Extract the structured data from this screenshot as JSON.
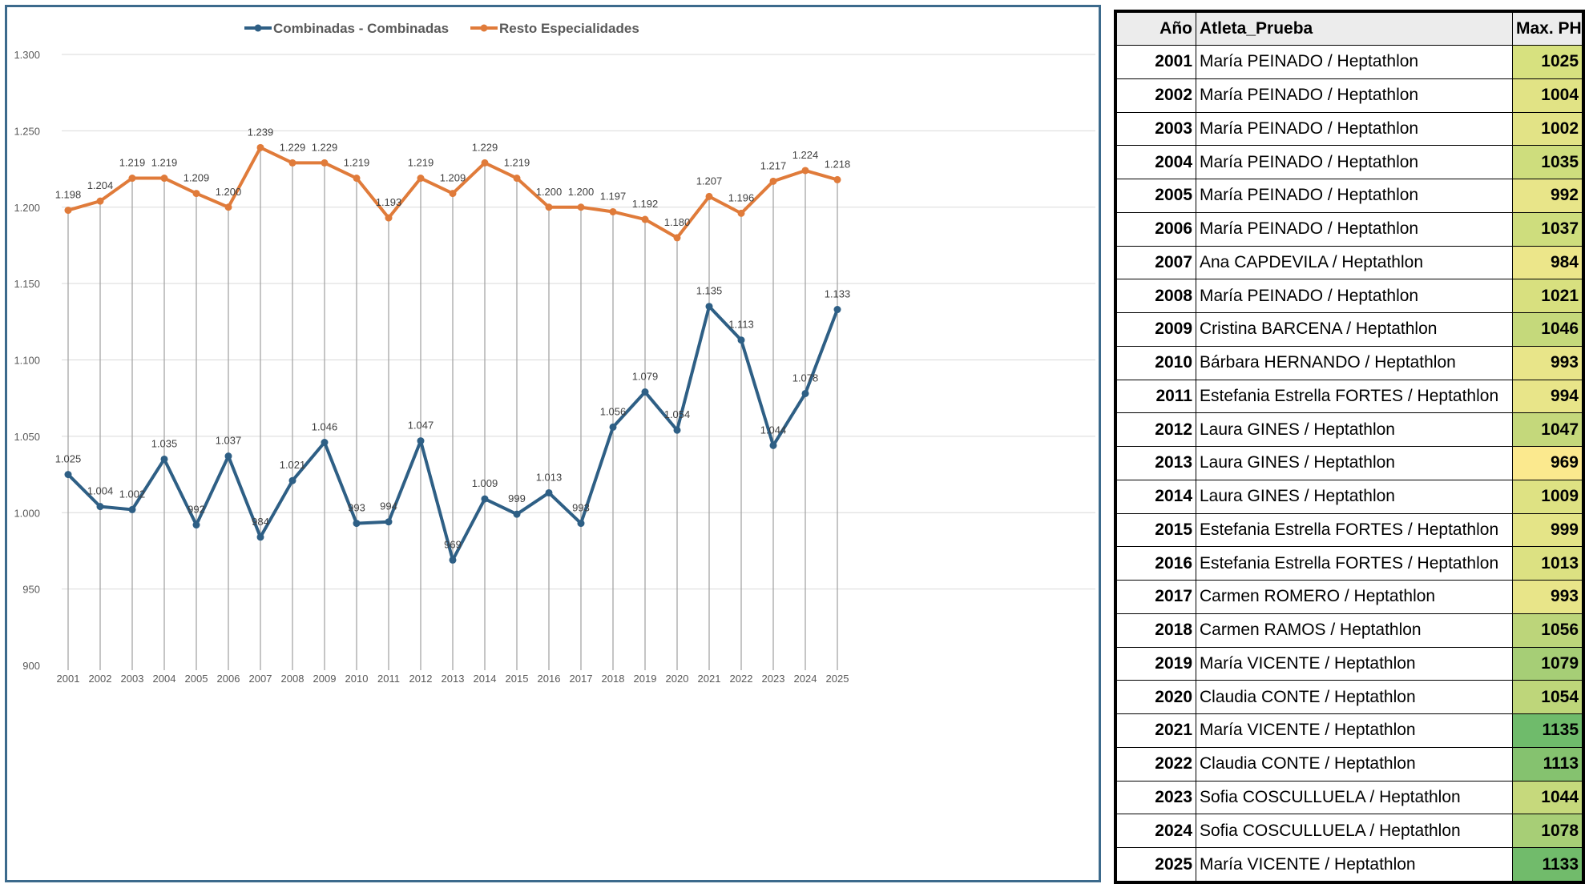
{
  "chart_data": {
    "type": "line",
    "categories": [
      "2001",
      "2002",
      "2003",
      "2004",
      "2005",
      "2006",
      "2007",
      "2008",
      "2009",
      "2010",
      "2011",
      "2012",
      "2013",
      "2014",
      "2015",
      "2016",
      "2017",
      "2018",
      "2019",
      "2020",
      "2021",
      "2022",
      "2023",
      "2024",
      "2025"
    ],
    "series": [
      {
        "name": "Combinadas - Combinadas",
        "color": "#2e5f85",
        "values": [
          1025,
          1004,
          1002,
          1035,
          992,
          1037,
          984,
          1021,
          1046,
          993,
          994,
          1047,
          969,
          1009,
          999,
          1013,
          993,
          1056,
          1079,
          1054,
          1135,
          1113,
          1044,
          1078,
          1133
        ],
        "labels": [
          "1.025",
          "1.004",
          "1.002",
          "1.035",
          "992",
          "1.037",
          "984",
          "1.021",
          "1.046",
          "993",
          "994",
          "1.047",
          "969",
          "1.009",
          "999",
          "1.013",
          "993",
          "1.056",
          "1.079",
          "1.054",
          "1.135",
          "1.113",
          "1.044",
          "1.078",
          "1.133"
        ]
      },
      {
        "name": "Resto Especialidades",
        "color": "#e07b3a",
        "values": [
          1198,
          1204,
          1219,
          1219,
          1209,
          1200,
          1239,
          1229,
          1229,
          1219,
          1193,
          1219,
          1209,
          1229,
          1219,
          1200,
          1200,
          1197,
          1192,
          1180,
          1207,
          1196,
          1217,
          1224,
          1218
        ],
        "labels": [
          "1.198",
          "1.204",
          "1.219",
          "1.219",
          "1.209",
          "1.200",
          "1.239",
          "1.229",
          "1.229",
          "1.219",
          "1.193",
          "1.219",
          "1.209",
          "1.229",
          "1.219",
          "1.200",
          "1.200",
          "1.197",
          "1.192",
          "1.180",
          "1.207",
          "1.196",
          "1.217",
          "1.224",
          "1.218"
        ]
      }
    ],
    "ylim": [
      900,
      1300
    ],
    "yticks": [
      900,
      950,
      1000,
      1050,
      1100,
      1150,
      1200,
      1250,
      1300
    ],
    "ytick_labels": [
      "900",
      "950",
      "1.000",
      "1.050",
      "1.100",
      "1.150",
      "1.200",
      "1.250",
      "1.300"
    ],
    "legend_position": "top-center",
    "grid": true
  },
  "table": {
    "headers": {
      "year": "Año",
      "athlete": "Atleta_Prueba",
      "max": "Max. PH"
    },
    "rows": [
      {
        "year": "2001",
        "athlete": "María PEINADO / Heptathlon",
        "max": "1025",
        "color": "#d7e17f"
      },
      {
        "year": "2002",
        "athlete": "María PEINADO / Heptathlon",
        "max": "1004",
        "color": "#e1e385"
      },
      {
        "year": "2003",
        "athlete": "María PEINADO / Heptathlon",
        "max": "1002",
        "color": "#e2e386"
      },
      {
        "year": "2004",
        "athlete": "María PEINADO / Heptathlon",
        "max": "1035",
        "color": "#cedd7d"
      },
      {
        "year": "2005",
        "athlete": "María PEINADO / Heptathlon",
        "max": "992",
        "color": "#e8e589"
      },
      {
        "year": "2006",
        "athlete": "María PEINADO / Heptathlon",
        "max": "1037",
        "color": "#cedd7d"
      },
      {
        "year": "2007",
        "athlete": "Ana CAPDEVILA / Heptathlon",
        "max": "984",
        "color": "#ece68a"
      },
      {
        "year": "2008",
        "athlete": "María PEINADO / Heptathlon",
        "max": "1021",
        "color": "#d8e07f"
      },
      {
        "year": "2009",
        "athlete": "Cristina BARCENA / Heptathlon",
        "max": "1046",
        "color": "#c5d97b"
      },
      {
        "year": "2010",
        "athlete": "Bárbara HERNANDO / Heptathlon",
        "max": "993",
        "color": "#e8e589"
      },
      {
        "year": "2011",
        "athlete": "Estefania Estrella FORTES / Heptathlon",
        "max": "994",
        "color": "#e8e589"
      },
      {
        "year": "2012",
        "athlete": "Laura GINES / Heptathlon",
        "max": "1047",
        "color": "#c4d87b"
      },
      {
        "year": "2013",
        "athlete": "Laura GINES / Heptathlon",
        "max": "969",
        "color": "#fbe98e"
      },
      {
        "year": "2014",
        "athlete": "Laura GINES / Heptathlon",
        "max": "1009",
        "color": "#dee283"
      },
      {
        "year": "2015",
        "athlete": "Estefania Estrella FORTES / Heptathlon",
        "max": "999",
        "color": "#e4e487"
      },
      {
        "year": "2016",
        "athlete": "Estefania Estrella FORTES / Heptathlon",
        "max": "1013",
        "color": "#dce182"
      },
      {
        "year": "2017",
        "athlete": "Carmen ROMERO / Heptathlon",
        "max": "993",
        "color": "#e8e589"
      },
      {
        "year": "2018",
        "athlete": "Carmen RAMOS / Heptathlon",
        "max": "1056",
        "color": "#bcd57a"
      },
      {
        "year": "2019",
        "athlete": "María VICENTE / Heptathlon",
        "max": "1079",
        "color": "#a6ce76"
      },
      {
        "year": "2020",
        "athlete": "Claudia CONTE / Heptathlon",
        "max": "1054",
        "color": "#bed67a"
      },
      {
        "year": "2021",
        "athlete": "María VICENTE / Heptathlon",
        "max": "1135",
        "color": "#6fbb6b"
      },
      {
        "year": "2022",
        "athlete": "Claudia CONTE / Heptathlon",
        "max": "1113",
        "color": "#85c26f"
      },
      {
        "year": "2023",
        "athlete": "Sofia COSCULLUELA / Heptathlon",
        "max": "1044",
        "color": "#c6d97c"
      },
      {
        "year": "2024",
        "athlete": "Sofia COSCULLUELA / Heptathlon",
        "max": "1078",
        "color": "#a7ce76"
      },
      {
        "year": "2025",
        "athlete": "María VICENTE / Heptathlon",
        "max": "1133",
        "color": "#71bb6b"
      }
    ]
  }
}
